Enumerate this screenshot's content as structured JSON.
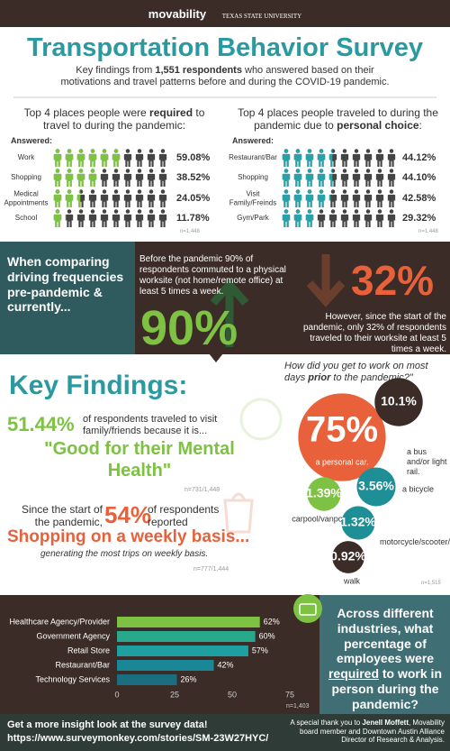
{
  "header": {
    "logo": "movability",
    "university": "TEXAS STATE UNIVERSITY"
  },
  "title": "Transportation Behavior Survey",
  "subtitle": [
    "Key findings from ",
    "1,551 respondents",
    " who answered based on their motivations and travel patterns before and during the COVID-19 pandemic."
  ],
  "required_places": {
    "heading": [
      "Top 4 places people were ",
      "required",
      " to travel to during the pandemic:"
    ],
    "answered": "Answered:",
    "categories": [
      "Work",
      "Shopping",
      "Medical Appointments",
      "School"
    ],
    "values": [
      59.08,
      38.52,
      24.05,
      11.78
    ],
    "value_labels": [
      "59.08%",
      "38.52%",
      "24.05%",
      "11.78%"
    ],
    "color": "#7dc242",
    "n": "n=1,448"
  },
  "personal_places": {
    "heading": [
      "Top 4 places people traveled to during the pandemic due to ",
      "personal choice",
      ":"
    ],
    "answered": "Answered:",
    "categories": [
      "Restaurant/Bar",
      "Shopping",
      "Visit Family/Freinds",
      "Gym/Park"
    ],
    "values": [
      44.12,
      44.1,
      42.58,
      29.32
    ],
    "value_labels": [
      "44.12%",
      "44.10%",
      "42.58%",
      "29.32%"
    ],
    "color": "#2aa0a8",
    "n": "n=1,448"
  },
  "driving": {
    "heading": "When comparing driving frequencies pre-pandemic & currently...",
    "before": "Before the pandemic 90% of respondents commuted to a physical worksite (not home/remote office) at least 5 times a week.",
    "before_figure": "90%",
    "after_figure": "32%",
    "after": "However, since the start of the pandemic, only 32% of respondents traveled to their worksite at least 5 times a week."
  },
  "key_findings": {
    "heading": "Key Findings:",
    "mental": {
      "figure": "51.44%",
      "text": "of respondents traveled to visit family/friends because it is...",
      "quote": "\"Good for their Mental Health\"",
      "n": "n=731/1,448"
    },
    "shopping": {
      "lead": "Since the start of the pandemic,",
      "figure": "54%",
      "text": "of respondents reported",
      "headline": "Shopping on a weekly basis...",
      "detail": "generating the most trips on weekly basis.",
      "n": "n=777/1,444"
    }
  },
  "commute": {
    "question": [
      "How did you get to work on most days ",
      "prior",
      " to the pandemic?\""
    ],
    "categories": [
      "a personal car.",
      "a bus and/or light rail.",
      "a bicycle",
      "carpool/vanpool",
      "motorcycle/scooter/moped",
      "walk"
    ],
    "values": [
      75,
      10.1,
      3.56,
      1.39,
      1.32,
      0.92
    ],
    "value_labels": [
      "75%",
      "10.1%",
      "3.56%",
      "1.39%",
      "1.32%",
      "0.92%"
    ],
    "colors": [
      "#e8613a",
      "#3b2c27",
      "#1f8f97",
      "#7dc242",
      "#1f8f97",
      "#3b2c27"
    ],
    "n": "n=1,515"
  },
  "chart_data": {
    "type": "bar",
    "orientation": "horizontal",
    "title": [
      "Across different industries, what percentage of employees were ",
      "required",
      " to work in person during the pandemic?"
    ],
    "categories": [
      "Healthcare Agency/Provider",
      "Government Agency",
      "Retail Store",
      "Restaurant/Bar",
      "Technology Services"
    ],
    "values": [
      62,
      60,
      57,
      42,
      26
    ],
    "value_labels": [
      "62%",
      "60%",
      "57%",
      "42%",
      "26%"
    ],
    "colors": [
      "#7dc242",
      "#29a98b",
      "#1fa0a0",
      "#1a8796",
      "#1b6e80"
    ],
    "xlim": [
      0,
      75
    ],
    "xticks": [
      0,
      25,
      50,
      75
    ],
    "grid": false,
    "n": "n=1,403"
  },
  "footer": {
    "cta": "Get a more insight look at the survey data!",
    "url": "https://www.surveymonkey.com/stories/SM-23W27HYC/",
    "thanks": [
      "A special thank you to ",
      "Jenell Moffett",
      ", Movability board member and Downtown Austin Alliance Director of Research & Analysis."
    ]
  }
}
